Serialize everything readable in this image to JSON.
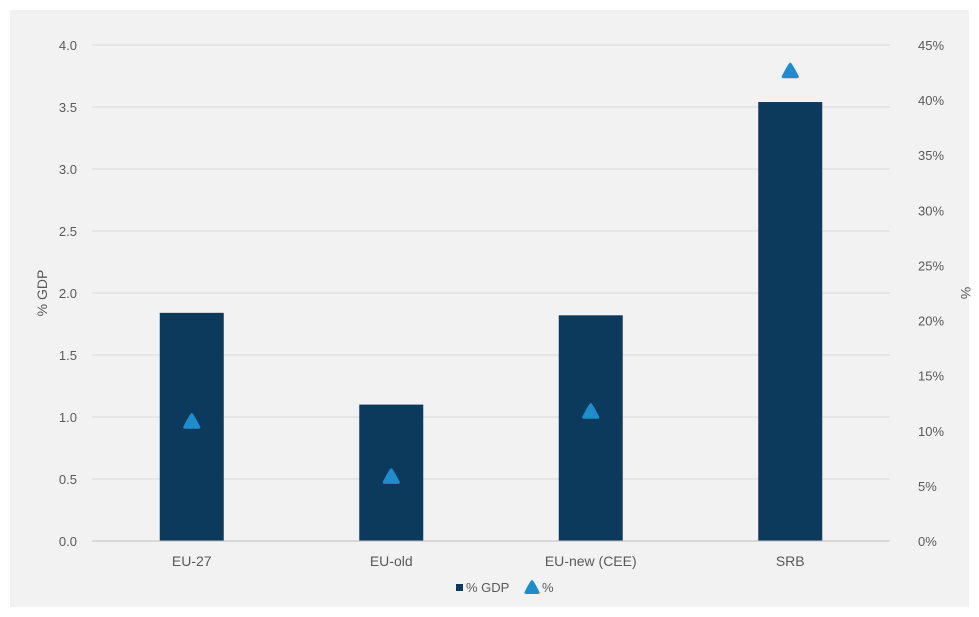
{
  "chart_data": {
    "type": "bar",
    "categories": [
      "EU-27",
      "EU-old",
      "EU-new (CEE)",
      "SRB"
    ],
    "series": [
      {
        "name": "% GDP",
        "axis": "left",
        "kind": "bar",
        "color": "#0c3a5c",
        "values": [
          1.84,
          1.1,
          1.82,
          3.54
        ]
      },
      {
        "name": "%",
        "axis": "right",
        "kind": "marker",
        "marker": "triangle",
        "color": "#1f8ccc",
        "values": [
          10.8,
          5.8,
          11.7,
          42.6
        ]
      }
    ],
    "ylabel": "% GDP",
    "y2label": "%",
    "ylim": [
      0,
      4
    ],
    "y2lim": [
      0,
      45
    ],
    "yticks": [
      "0.0",
      "0.5",
      "1.0",
      "1.5",
      "2.0",
      "2.5",
      "3.0",
      "3.5",
      "4.0"
    ],
    "y2ticks": [
      "0%",
      "5%",
      "10%",
      "15%",
      "20%",
      "25%",
      "30%",
      "35%",
      "40%",
      "45%"
    ],
    "grid": true,
    "legend_position": "bottom"
  }
}
